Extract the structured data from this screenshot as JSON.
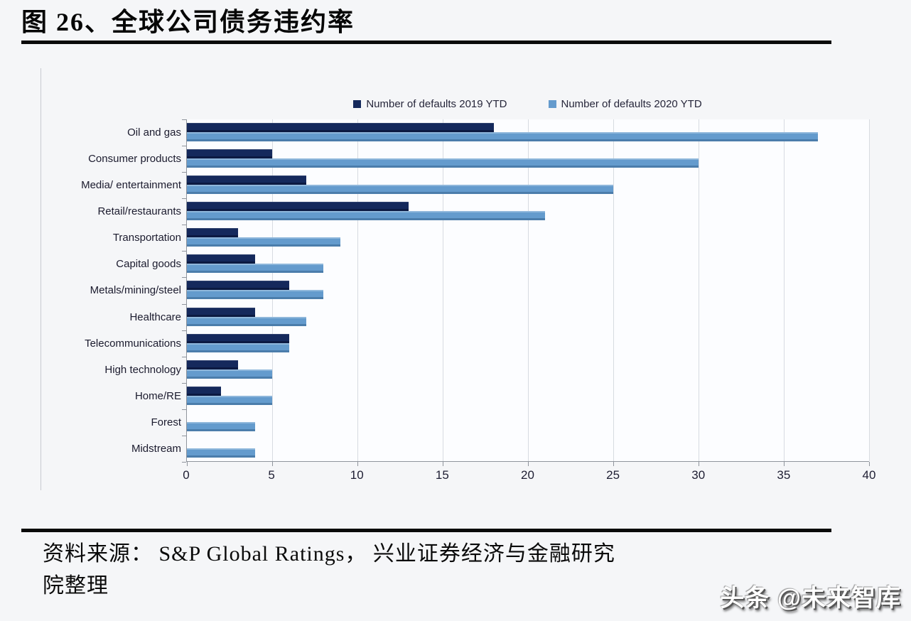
{
  "page": {
    "title": "图 26、全球公司债务违约率",
    "source_lines": [
      "资料来源： S&P Global Ratings， 兴业证券经济与金融研究",
      "院整理"
    ],
    "watermark": "头条 @未来智库"
  },
  "colors": {
    "series_2019": "#15295c",
    "series_2020": "#649bcd",
    "gridline": "#d7dbe1",
    "axis": "#8f949c",
    "divider": "#0a0a0a",
    "background": "#f5f6f8",
    "plot_background": "#fcfdff"
  },
  "chart_data": {
    "type": "bar",
    "orientation": "horizontal",
    "title": "全球公司债务违约率",
    "categories": [
      "Oil and gas",
      "Consumer products",
      "Media/ entertainment",
      "Retail/restaurants",
      "Transportation",
      "Capital goods",
      "Metals/mining/steel",
      "Healthcare",
      "Telecommunications",
      "High technology",
      "Home/RE",
      "Forest",
      "Midstream"
    ],
    "series": [
      {
        "name": "Number of defaults 2019 YTD",
        "color": "#15295c",
        "values": [
          18,
          5,
          7,
          13,
          3,
          4,
          6,
          4,
          6,
          3,
          2,
          0,
          0
        ]
      },
      {
        "name": "Number of defaults 2020 YTD",
        "color": "#649bcd",
        "values": [
          37,
          30,
          25,
          21,
          9,
          8,
          8,
          7,
          6,
          5,
          5,
          4,
          4
        ]
      }
    ],
    "xlabel": "",
    "ylabel": "",
    "xlim": [
      0,
      40
    ],
    "x_ticks": [
      0,
      5,
      10,
      15,
      20,
      25,
      30,
      35,
      40
    ],
    "grid": "vertical",
    "legend_position": "top"
  }
}
